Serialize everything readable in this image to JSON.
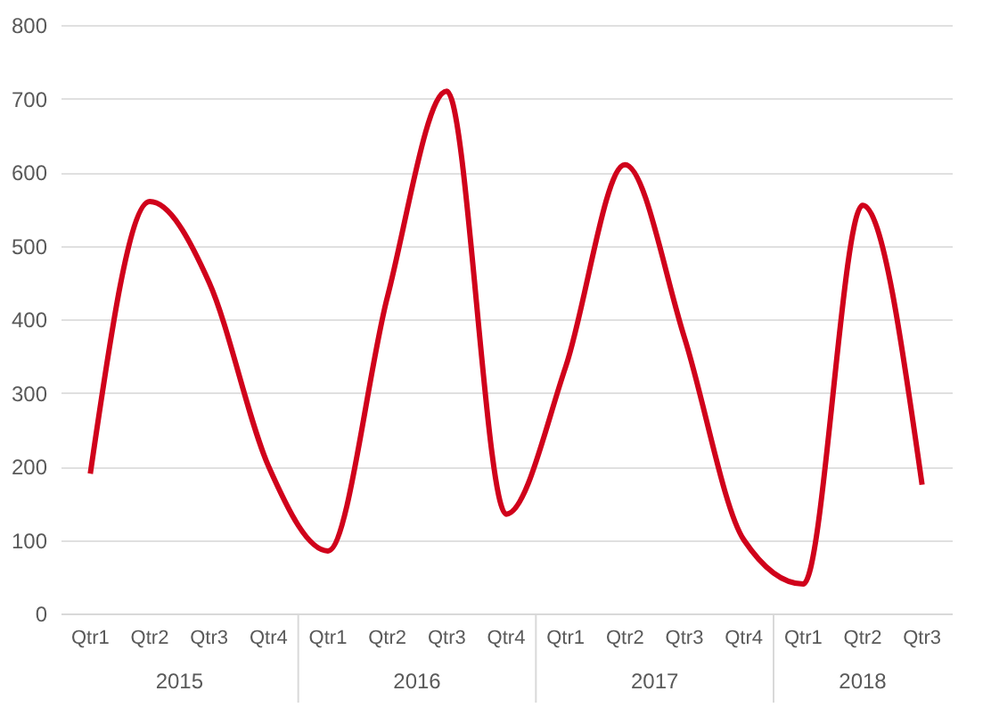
{
  "chart_data": {
    "type": "line",
    "categories": [
      "Qtr1",
      "Qtr2",
      "Qtr3",
      "Qtr4",
      "Qtr1",
      "Qtr2",
      "Qtr3",
      "Qtr4",
      "Qtr1",
      "Qtr2",
      "Qtr3",
      "Qtr4",
      "Qtr1",
      "Qtr2",
      "Qtr3"
    ],
    "series": [
      {
        "color": "#d0021b",
        "values": [
          190,
          560,
          450,
          200,
          85,
          430,
          710,
          135,
          335,
          610,
          375,
          100,
          40,
          555,
          175
        ]
      }
    ],
    "annotations": [
      "2015",
      "2016",
      "2017",
      "2018"
    ],
    "ylim": [
      0,
      800
    ],
    "yticks": [
      0,
      100,
      200,
      300,
      400,
      500,
      600,
      700,
      800
    ],
    "grid": "y",
    "marker": "none",
    "line_style": "solid"
  }
}
